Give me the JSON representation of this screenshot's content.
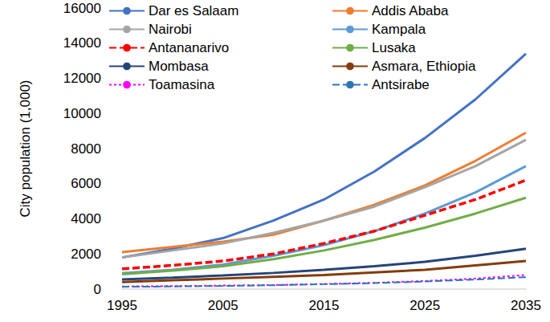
{
  "chart_data": {
    "type": "line",
    "y_label": "City population (1,000)",
    "x": [
      1995,
      2000,
      2005,
      2010,
      2015,
      2020,
      2025,
      2030,
      2035
    ],
    "xlim": [
      1995,
      2035
    ],
    "xticks": [
      1995,
      2005,
      2015,
      2025,
      2035
    ],
    "ylim": [
      0,
      16000
    ],
    "yticks": [
      0,
      2000,
      4000,
      6000,
      8000,
      10000,
      12000,
      14000,
      16000
    ],
    "grid": false,
    "legend": "top",
    "series": [
      {
        "name": "Dar es Salaam",
        "color": "#4472C4",
        "line_style": "solid",
        "values": [
          1800,
          2300,
          2900,
          3900,
          5100,
          6700,
          8600,
          10800,
          13400
        ]
      },
      {
        "name": "Addis Ababa",
        "color": "#ED7D31",
        "line_style": "solid",
        "values": [
          2100,
          2400,
          2700,
          3100,
          3900,
          4800,
          5900,
          7300,
          8900
        ]
      },
      {
        "name": "Nairobi",
        "color": "#A5A5A5",
        "line_style": "solid",
        "values": [
          1800,
          2200,
          2600,
          3200,
          3900,
          4700,
          5800,
          7000,
          8500
        ]
      },
      {
        "name": "Kampala",
        "color": "#5B9BD5",
        "line_style": "solid",
        "values": [
          900,
          1100,
          1400,
          1900,
          2500,
          3300,
          4300,
          5500,
          7000
        ]
      },
      {
        "name": "Antananarivo",
        "color": "#FF0000",
        "line_style": "dashed",
        "values": [
          1150,
          1350,
          1600,
          2000,
          2600,
          3300,
          4200,
          5100,
          6200
        ]
      },
      {
        "name": "Lusaka",
        "color": "#70AD47",
        "line_style": "solid",
        "values": [
          850,
          1050,
          1300,
          1700,
          2200,
          2800,
          3500,
          4300,
          5200
        ]
      },
      {
        "name": "Mombasa",
        "color": "#264478",
        "line_style": "solid",
        "values": [
          550,
          650,
          780,
          920,
          1100,
          1300,
          1550,
          1900,
          2300
        ]
      },
      {
        "name": "Asmara, Ethiopia",
        "color": "#843C0C",
        "line_style": "solid",
        "values": [
          400,
          500,
          600,
          700,
          800,
          950,
          1100,
          1350,
          1600
        ]
      },
      {
        "name": "Toamasina",
        "color": "#FF00FF",
        "line_style": "dotted",
        "values": [
          150,
          170,
          200,
          230,
          290,
          360,
          460,
          600,
          800
        ]
      },
      {
        "name": "Antsirabe",
        "color": "#2E75B6",
        "line_style": "dashed",
        "values": [
          130,
          150,
          180,
          220,
          280,
          340,
          430,
          540,
          680
        ]
      }
    ]
  }
}
